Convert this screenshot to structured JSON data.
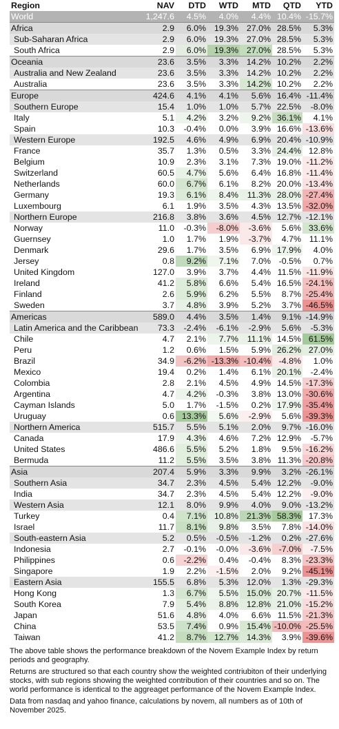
{
  "table": {
    "headers": [
      "Region",
      "NAV",
      "DTD",
      "WTD",
      "MTD",
      "QTD",
      "YTD"
    ],
    "rows": [
      {
        "level": 0,
        "name": "World",
        "nav": "1,247.6",
        "dtd": "4.5%",
        "wtd": "4.0%",
        "mtd": "4.4%",
        "qtd": "10.4%",
        "ytd": "-15.7%"
      },
      {
        "level": 1,
        "name": "Africa",
        "nav": "2.9",
        "dtd": "6.0%",
        "wtd": "19.3%",
        "mtd": "27.0%",
        "qtd": "28.5%",
        "ytd": "5.3%"
      },
      {
        "level": 2,
        "name": "Sub-Saharan Africa",
        "nav": "2.9",
        "dtd": "6.0%",
        "wtd": "19.3%",
        "mtd": "27.0%",
        "qtd": "28.5%",
        "ytd": "5.3%"
      },
      {
        "level": 3,
        "name": "South Africa",
        "nav": "2.9",
        "dtd": "6.0%",
        "wtd": "19.3%",
        "mtd": "27.0%",
        "qtd": "28.5%",
        "ytd": "5.3%",
        "colors": {
          "dtd": "#e3eee1",
          "wtd": "#b5d2ad",
          "mtd": "#c4dcbe"
        }
      },
      {
        "level": 1,
        "name": "Oceania",
        "nav": "23.6",
        "dtd": "3.5%",
        "wtd": "3.3%",
        "mtd": "14.2%",
        "qtd": "10.2%",
        "ytd": "2.2%"
      },
      {
        "level": 2,
        "name": "Australia and New Zealand",
        "nav": "23.6",
        "dtd": "3.5%",
        "wtd": "3.3%",
        "mtd": "14.2%",
        "qtd": "10.2%",
        "ytd": "2.2%"
      },
      {
        "level": 3,
        "name": "Australia",
        "nav": "23.6",
        "dtd": "3.5%",
        "wtd": "3.3%",
        "mtd": "14.2%",
        "qtd": "10.2%",
        "ytd": "2.2%",
        "colors": {
          "mtd": "#d6e7d2"
        }
      },
      {
        "level": 1,
        "name": "Europe",
        "nav": "424.6",
        "dtd": "4.1%",
        "wtd": "4.1%",
        "mtd": "5.6%",
        "qtd": "16.4%",
        "ytd": "-11.4%"
      },
      {
        "level": 2,
        "name": "Southern Europe",
        "nav": "15.4",
        "dtd": "1.0%",
        "wtd": "1.0%",
        "mtd": "5.7%",
        "qtd": "22.5%",
        "ytd": "-8.0%"
      },
      {
        "level": 3,
        "name": "Italy",
        "nav": "5.1",
        "dtd": "4.2%",
        "wtd": "3.2%",
        "mtd": "9.2%",
        "qtd": "36.1%",
        "ytd": "4.1%",
        "colors": {
          "dtd": "#edf4ec",
          "mtd": "#eef5ec",
          "qtd": "#c6ddc0"
        }
      },
      {
        "level": 3,
        "name": "Spain",
        "nav": "10.3",
        "dtd": "-0.4%",
        "wtd": "0.0%",
        "mtd": "3.9%",
        "qtd": "16.6%",
        "ytd": "-13.6%",
        "colors": {
          "ytd": "#f9e0e0"
        }
      },
      {
        "level": 2,
        "name": "Western Europe",
        "nav": "192.5",
        "dtd": "4.6%",
        "wtd": "4.9%",
        "mtd": "6.9%",
        "qtd": "20.4%",
        "ytd": "-10.9%"
      },
      {
        "level": 3,
        "name": "France",
        "nav": "35.7",
        "dtd": "1.3%",
        "wtd": "0.5%",
        "mtd": "3.3%",
        "qtd": "24.4%",
        "ytd": "12.8%",
        "colors": {
          "qtd": "#e5efe3"
        }
      },
      {
        "level": 3,
        "name": "Belgium",
        "nav": "10.9",
        "dtd": "2.3%",
        "wtd": "3.1%",
        "mtd": "7.3%",
        "qtd": "19.0%",
        "ytd": "-11.2%",
        "colors": {
          "ytd": "#fbe9e9"
        }
      },
      {
        "level": 3,
        "name": "Switzerland",
        "nav": "60.5",
        "dtd": "4.7%",
        "wtd": "5.6%",
        "mtd": "6.4%",
        "qtd": "16.8%",
        "ytd": "-11.4%",
        "colors": {
          "dtd": "#e9f2e7",
          "ytd": "#fbe9e9"
        }
      },
      {
        "level": 3,
        "name": "Netherlands",
        "nav": "60.0",
        "dtd": "6.7%",
        "wtd": "6.1%",
        "mtd": "8.2%",
        "qtd": "20.0%",
        "ytd": "-13.4%",
        "colors": {
          "dtd": "#d4e6cf",
          "ytd": "#f9e1e1"
        }
      },
      {
        "level": 3,
        "name": "Germany",
        "nav": "19.3",
        "dtd": "6.1%",
        "wtd": "8.4%",
        "mtd": "11.3%",
        "qtd": "28.0%",
        "ytd": "-27.4%",
        "colors": {
          "dtd": "#dcebd8",
          "wtd": "#eef5ec",
          "mtd": "#e8f1e6",
          "qtd": "#e9f2e7",
          "ytd": "#f2b4b4"
        }
      },
      {
        "level": 3,
        "name": "Luxembourg",
        "nav": "6.1",
        "dtd": "1.9%",
        "wtd": "3.5%",
        "mtd": "4.3%",
        "qtd": "13.5%",
        "ytd": "-32.0%",
        "colors": {
          "ytd": "#f0a8a8"
        }
      },
      {
        "level": 2,
        "name": "Northern Europe",
        "nav": "216.8",
        "dtd": "3.8%",
        "wtd": "3.6%",
        "mtd": "4.5%",
        "qtd": "12.7%",
        "ytd": "-12.1%"
      },
      {
        "level": 3,
        "name": "Norway",
        "nav": "11.0",
        "dtd": "-0.3%",
        "wtd": "-8.0%",
        "mtd": "-3.6%",
        "qtd": "5.6%",
        "ytd": "33.6%",
        "colors": {
          "wtd": "#f6cdcd",
          "mtd": "#fbe8e8",
          "ytd": "#d2e5cd"
        }
      },
      {
        "level": 3,
        "name": "Guernsey",
        "nav": "1.0",
        "dtd": "1.7%",
        "wtd": "1.9%",
        "mtd": "-3.7%",
        "qtd": "4.7%",
        "ytd": "11.1%",
        "colors": {
          "mtd": "#fbe8e8"
        }
      },
      {
        "level": 3,
        "name": "Denmark",
        "nav": "29.6",
        "dtd": "1.7%",
        "wtd": "3.5%",
        "mtd": "6.9%",
        "qtd": "17.9%",
        "ytd": "4.0%",
        "colors": {
          "qtd": "#edf4eb"
        }
      },
      {
        "level": 3,
        "name": "Jersey",
        "nav": "0.8",
        "dtd": "9.2%",
        "wtd": "7.1%",
        "mtd": "7.0%",
        "qtd": "-0.5%",
        "ytd": "0.7%",
        "colors": {
          "dtd": "#c3dbbd",
          "wtd": "#f0f6ee"
        }
      },
      {
        "level": 3,
        "name": "United Kingdom",
        "nav": "127.0",
        "dtd": "3.9%",
        "wtd": "3.7%",
        "mtd": "4.4%",
        "qtd": "11.5%",
        "ytd": "-11.9%",
        "colors": {
          "ytd": "#fae5e5"
        }
      },
      {
        "level": 3,
        "name": "Ireland",
        "nav": "41.2",
        "dtd": "5.8%",
        "wtd": "6.6%",
        "mtd": "5.4%",
        "qtd": "16.5%",
        "ytd": "-24.1%",
        "colors": {
          "dtd": "#deecda",
          "ytd": "#f4c0c0"
        }
      },
      {
        "level": 3,
        "name": "Finland",
        "nav": "2.6",
        "dtd": "5.9%",
        "wtd": "6.2%",
        "mtd": "5.5%",
        "qtd": "8.7%",
        "ytd": "-25.4%",
        "colors": {
          "dtd": "#ddebd9",
          "ytd": "#f3bbbb"
        }
      },
      {
        "level": 3,
        "name": "Sweden",
        "nav": "3.7",
        "dtd": "4.8%",
        "wtd": "3.9%",
        "mtd": "5.2%",
        "qtd": "3.7%",
        "ytd": "-46.5%",
        "colors": {
          "dtd": "#e8f1e6",
          "ytd": "#ec9090"
        }
      },
      {
        "level": 1,
        "name": "Americas",
        "nav": "589.0",
        "dtd": "4.4%",
        "wtd": "3.5%",
        "mtd": "1.4%",
        "qtd": "9.1%",
        "ytd": "-14.9%"
      },
      {
        "level": 2,
        "name": "Latin America and the Caribbean",
        "nav": "73.3",
        "dtd": "-2.4%",
        "wtd": "-6.1%",
        "mtd": "-2.9%",
        "qtd": "5.6%",
        "ytd": "-5.3%"
      },
      {
        "level": 3,
        "name": "Chile",
        "nav": "4.7",
        "dtd": "2.1%",
        "wtd": "7.7%",
        "mtd": "11.1%",
        "qtd": "14.5%",
        "ytd": "61.5%",
        "colors": {
          "wtd": "#edf4eb",
          "mtd": "#eaf2e8",
          "ytd": "#a4c99a"
        }
      },
      {
        "level": 3,
        "name": "Peru",
        "nav": "1.2",
        "dtd": "0.6%",
        "wtd": "1.5%",
        "mtd": "5.9%",
        "qtd": "26.2%",
        "ytd": "27.0%",
        "colors": {
          "qtd": "#e2eddf",
          "ytd": "#e4eee1"
        }
      },
      {
        "level": 3,
        "name": "Brazil",
        "nav": "34.9",
        "dtd": "-6.2%",
        "wtd": "-13.3%",
        "mtd": "-10.4%",
        "qtd": "-4.8%",
        "ytd": "1.0%",
        "colors": {
          "dtd": "#f3c5c5",
          "wtd": "#f0adad",
          "mtd": "#f3bfbf",
          "qtd": "#fbe9e9"
        }
      },
      {
        "level": 3,
        "name": "Mexico",
        "nav": "19.4",
        "dtd": "0.2%",
        "wtd": "1.4%",
        "mtd": "6.1%",
        "qtd": "20.1%",
        "ytd": "-2.4%",
        "colors": {
          "qtd": "#e8f1e6"
        }
      },
      {
        "level": 3,
        "name": "Colombia",
        "nav": "2.8",
        "dtd": "2.1%",
        "wtd": "4.5%",
        "mtd": "4.9%",
        "qtd": "14.5%",
        "ytd": "-17.3%",
        "colors": {
          "ytd": "#f6d0d0"
        }
      },
      {
        "level": 3,
        "name": "Argentina",
        "nav": "4.7",
        "dtd": "4.2%",
        "wtd": "-0.3%",
        "mtd": "3.8%",
        "qtd": "13.0%",
        "ytd": "-30.6%",
        "colors": {
          "dtd": "#edf4ec",
          "ytd": "#f1abab"
        }
      },
      {
        "level": 3,
        "name": "Cayman Islands",
        "nav": "5.0",
        "dtd": "1.7%",
        "wtd": "-1.5%",
        "mtd": "0.2%",
        "qtd": "17.9%",
        "ytd": "-35.4%",
        "colors": {
          "qtd": "#edf4eb",
          "ytd": "#ee9e9e"
        }
      },
      {
        "level": 3,
        "name": "Uruguay",
        "nav": "0.6",
        "dtd": "13.3%",
        "wtd": "5.6%",
        "mtd": "-2.9%",
        "qtd": "5.6%",
        "ytd": "-39.3%",
        "colors": {
          "dtd": "#a7cb9d",
          "wtd": "#f4f8f3",
          "mtd": "#fcefef",
          "ytd": "#ec9494"
        }
      },
      {
        "level": 2,
        "name": "Northern America",
        "nav": "515.7",
        "dtd": "5.5%",
        "wtd": "5.1%",
        "mtd": "2.0%",
        "qtd": "9.7%",
        "ytd": "-16.0%"
      },
      {
        "level": 3,
        "name": "Canada",
        "nav": "17.9",
        "dtd": "4.3%",
        "wtd": "4.6%",
        "mtd": "7.2%",
        "qtd": "12.9%",
        "ytd": "-5.7%",
        "colors": {
          "dtd": "#ecf4ea"
        }
      },
      {
        "level": 3,
        "name": "United States",
        "nav": "486.6",
        "dtd": "5.5%",
        "wtd": "5.2%",
        "mtd": "1.8%",
        "qtd": "9.5%",
        "ytd": "-16.2%",
        "colors": {
          "dtd": "#e2eede",
          "ytd": "#f8d8d8"
        }
      },
      {
        "level": 3,
        "name": "Bermuda",
        "nav": "11.2",
        "dtd": "5.5%",
        "wtd": "3.5%",
        "mtd": "3.8%",
        "qtd": "11.3%",
        "ytd": "-20.8%",
        "colors": {
          "dtd": "#e2eede",
          "ytd": "#f6caca"
        }
      },
      {
        "level": 1,
        "name": "Asia",
        "nav": "207.4",
        "dtd": "5.9%",
        "wtd": "3.3%",
        "mtd": "9.9%",
        "qtd": "3.2%",
        "ytd": "-26.1%"
      },
      {
        "level": 2,
        "name": "Southern Asia",
        "nav": "34.7",
        "dtd": "2.3%",
        "wtd": "4.5%",
        "mtd": "5.4%",
        "qtd": "12.2%",
        "ytd": "-9.0%"
      },
      {
        "level": 3,
        "name": "India",
        "nav": "34.7",
        "dtd": "2.3%",
        "wtd": "4.5%",
        "mtd": "5.4%",
        "qtd": "12.2%",
        "ytd": "-9.0%",
        "colors": {
          "ytd": "#fcefef"
        }
      },
      {
        "level": 2,
        "name": "Western Asia",
        "nav": "12.1",
        "dtd": "8.0%",
        "wtd": "9.9%",
        "mtd": "4.0%",
        "qtd": "9.0%",
        "ytd": "-13.2%"
      },
      {
        "level": 3,
        "name": "Turkey",
        "nav": "0.4",
        "dtd": "7.1%",
        "wtd": "10.8%",
        "mtd": "21.3%",
        "qtd": "58.3%",
        "ytd": "17.3%",
        "colors": {
          "dtd": "#d0e3cb",
          "wtd": "#e5efe3",
          "mtd": "#bcd7b5",
          "qtd": "#a9cc9f"
        }
      },
      {
        "level": 3,
        "name": "Israel",
        "nav": "11.7",
        "dtd": "8.1%",
        "wtd": "9.8%",
        "mtd": "3.5%",
        "qtd": "7.8%",
        "ytd": "-14.0%",
        "colors": {
          "dtd": "#c9dfc3",
          "wtd": "#e8f1e6",
          "ytd": "#f9e1e1"
        }
      },
      {
        "level": 2,
        "name": "South-eastern Asia",
        "nav": "5.2",
        "dtd": "0.5%",
        "wtd": "-0.5%",
        "mtd": "-1.2%",
        "qtd": "0.2%",
        "ytd": "-27.6%"
      },
      {
        "level": 3,
        "name": "Indonesia",
        "nav": "2.7",
        "dtd": "-0.1%",
        "wtd": "-0.0%",
        "mtd": "-3.6%",
        "qtd": "-7.0%",
        "ytd": "-7.5%",
        "colors": {
          "mtd": "#fbe8e8",
          "qtd": "#f6cfcf",
          "ytd": "#fcefef"
        }
      },
      {
        "level": 3,
        "name": "Philippines",
        "nav": "0.6",
        "dtd": "-2.2%",
        "wtd": "0.4%",
        "mtd": "-0.4%",
        "qtd": "8.3%",
        "ytd": "-23.3%",
        "colors": {
          "dtd": "#f7d3d3",
          "ytd": "#f5c4c4"
        }
      },
      {
        "level": 3,
        "name": "Singapore",
        "nav": "1.9",
        "dtd": "2.2%",
        "wtd": "-1.5%",
        "mtd": "2.0%",
        "qtd": "9.2%",
        "ytd": "-45.1%",
        "colors": {
          "wtd": "#fcefef",
          "ytd": "#ec9191"
        }
      },
      {
        "level": 2,
        "name": "Eastern Asia",
        "nav": "155.5",
        "dtd": "6.8%",
        "wtd": "5.3%",
        "mtd": "12.0%",
        "qtd": "1.3%",
        "ytd": "-29.3%"
      },
      {
        "level": 3,
        "name": "Hong Kong",
        "nav": "1.3",
        "dtd": "6.7%",
        "wtd": "5.5%",
        "mtd": "15.0%",
        "qtd": "20.7%",
        "ytd": "-11.5%",
        "colors": {
          "dtd": "#d4e6cf",
          "wtd": "#eef5ec",
          "mtd": "#d9e9d5",
          "qtd": "#e8f1e6",
          "ytd": "#fbe9e9"
        }
      },
      {
        "level": 3,
        "name": "South Korea",
        "nav": "7.9",
        "dtd": "5.4%",
        "wtd": "8.8%",
        "mtd": "12.8%",
        "qtd": "21.0%",
        "ytd": "-15.2%",
        "colors": {
          "dtd": "#e3eee0",
          "wtd": "#ebf3e9",
          "mtd": "#e2eedf",
          "qtd": "#e7f0e5",
          "ytd": "#f8dbdb"
        }
      },
      {
        "level": 3,
        "name": "Japan",
        "nav": "51.6",
        "dtd": "4.8%",
        "wtd": "4.0%",
        "mtd": "6.6%",
        "qtd": "11.5%",
        "ytd": "-21.3%",
        "colors": {
          "dtd": "#e8f1e6",
          "ytd": "#f5c9c9"
        }
      },
      {
        "level": 3,
        "name": "China",
        "nav": "53.5",
        "dtd": "7.4%",
        "wtd": "0.9%",
        "mtd": "15.4%",
        "qtd": "-10.0%",
        "ytd": "-25.5%",
        "colors": {
          "dtd": "#cde2c8",
          "mtd": "#d6e7d2",
          "qtd": "#f1b9b9",
          "ytd": "#f3bbbb"
        }
      },
      {
        "level": 3,
        "name": "Taiwan",
        "nav": "41.2",
        "dtd": "8.7%",
        "wtd": "12.7%",
        "mtd": "14.3%",
        "qtd": "3.9%",
        "ytd": "-39.6%",
        "colors": {
          "dtd": "#c5dcbf",
          "wtd": "#d2e5cd",
          "mtd": "#dbead7",
          "ytd": "#ec9393"
        }
      }
    ]
  },
  "notes": [
    "The above table shows the performance breakdown of the Novem Example Index by return periods and geography.",
    "Returns are structured so that each country show the weighted contriubiton of their underlying stocks, with sub regions showing the weighted contribution of their countries and so on. The world performance is identical to the aggreaget performance of the Novem Example Index.",
    "Data from nasdaq and yahoo finance, calculations by novem, all numbers as of 10th of November 2025."
  ]
}
